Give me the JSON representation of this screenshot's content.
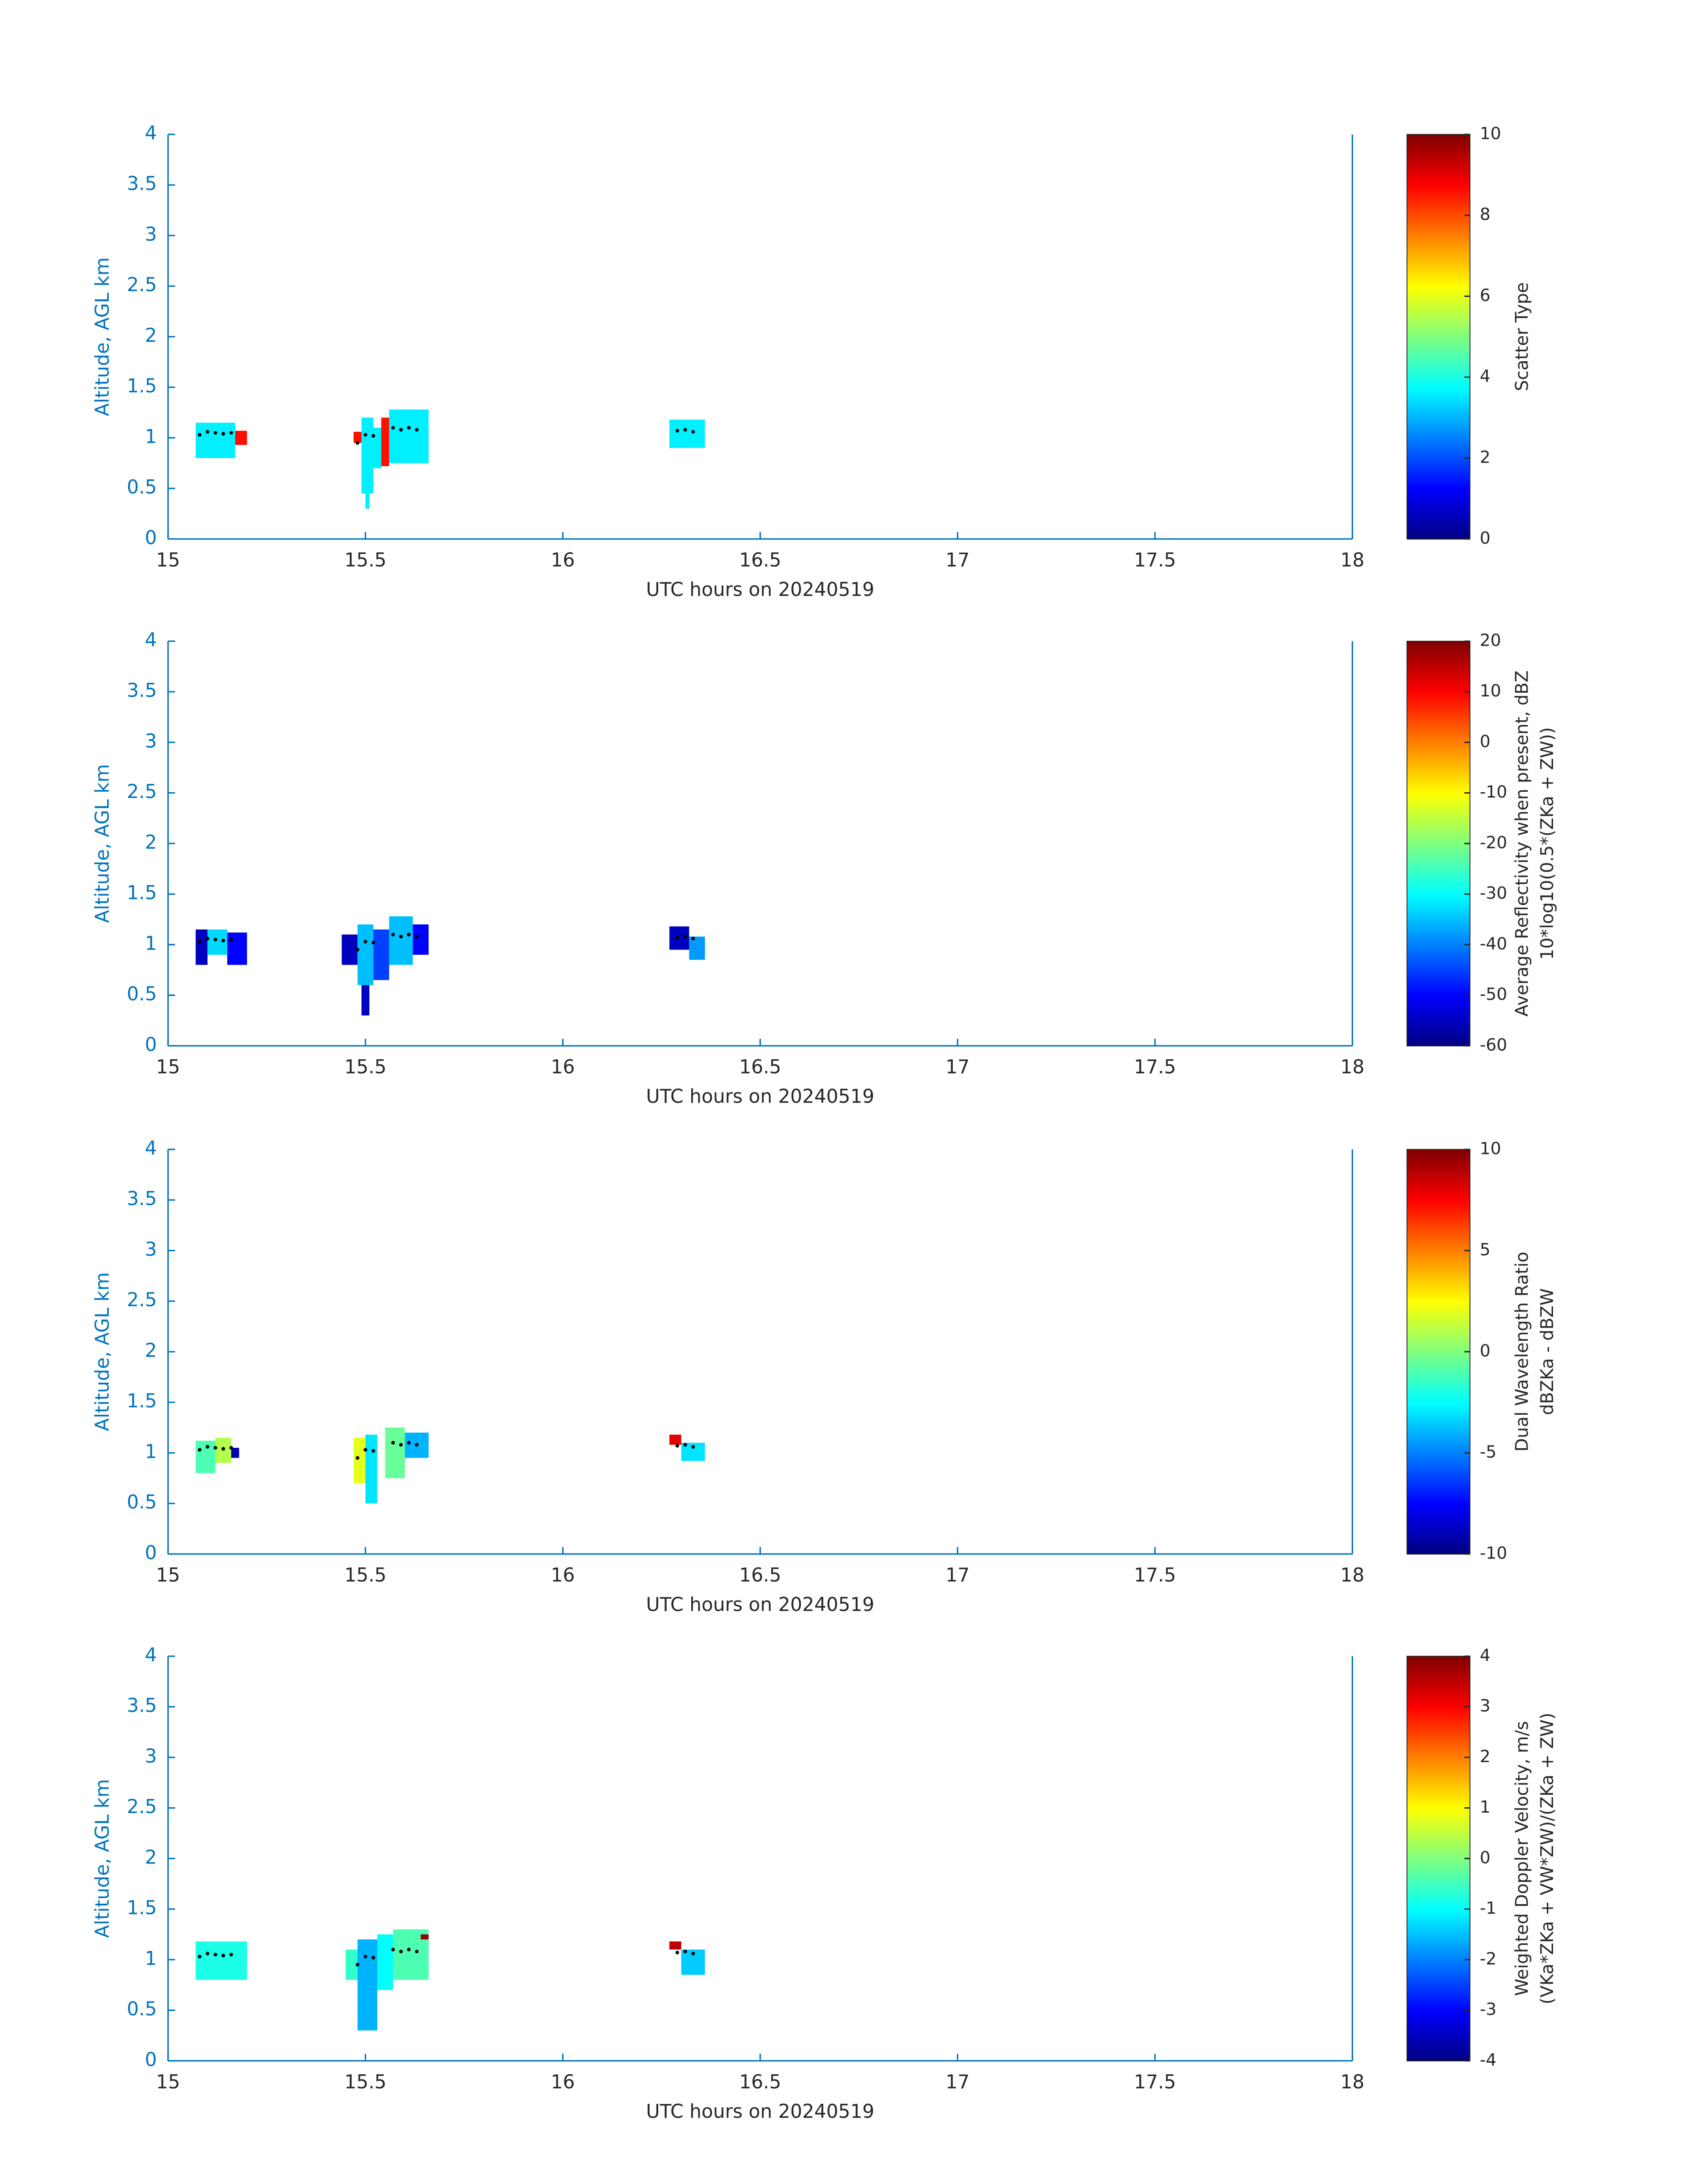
{
  "chart_data": [
    {
      "type": "heatmap",
      "xlabel": "UTC hours on 20240519",
      "ylabel": "Altitude, AGL km",
      "xlim": [
        15,
        18
      ],
      "xticks": [
        15,
        15.5,
        16,
        16.5,
        17,
        17.5,
        18
      ],
      "ylim": [
        0,
        4
      ],
      "yticks": [
        0,
        0.5,
        1,
        1.5,
        2,
        2.5,
        3,
        3.5,
        4
      ],
      "clim": [
        0,
        10
      ],
      "cticks": [
        0,
        2,
        4,
        6,
        8,
        10
      ],
      "clabel": [
        "Scatter Type"
      ],
      "cells": [
        {
          "x": [
            15.07,
            15.17
          ],
          "y": [
            0.8,
            1.15
          ],
          "v": 3.6
        },
        {
          "x": [
            15.17,
            15.2
          ],
          "y": [
            0.93,
            1.07
          ],
          "v": 8.6
        },
        {
          "x": [
            15.47,
            15.49
          ],
          "y": [
            0.95,
            1.06
          ],
          "v": 8.6
        },
        {
          "x": [
            15.49,
            15.52
          ],
          "y": [
            0.45,
            1.2
          ],
          "v": 3.6
        },
        {
          "x": [
            15.5,
            15.51
          ],
          "y": [
            0.3,
            0.45
          ],
          "v": 3.6
        },
        {
          "x": [
            15.52,
            15.54
          ],
          "y": [
            0.7,
            1.1
          ],
          "v": 3.6
        },
        {
          "x": [
            15.54,
            15.56
          ],
          "y": [
            0.72,
            1.2
          ],
          "v": 8.6
        },
        {
          "x": [
            15.56,
            15.66
          ],
          "y": [
            0.75,
            1.28
          ],
          "v": 3.6
        },
        {
          "x": [
            16.27,
            16.36
          ],
          "y": [
            0.9,
            1.18
          ],
          "v": 3.6
        }
      ],
      "dots": {
        "color": "#000000",
        "x": [
          15.08,
          15.1,
          15.12,
          15.14,
          15.16,
          15.48,
          15.5,
          15.52,
          15.57,
          15.59,
          15.61,
          15.63,
          16.29,
          16.31,
          16.33
        ],
        "y": [
          1.03,
          1.06,
          1.05,
          1.04,
          1.05,
          0.95,
          1.03,
          1.02,
          1.1,
          1.08,
          1.1,
          1.08,
          1.07,
          1.08,
          1.06
        ]
      }
    },
    {
      "type": "heatmap",
      "xlabel": "UTC hours on 20240519",
      "ylabel": "Altitude, AGL km",
      "xlim": [
        15,
        18
      ],
      "xticks": [
        15,
        15.5,
        16,
        16.5,
        17,
        17.5,
        18
      ],
      "ylim": [
        0,
        4
      ],
      "yticks": [
        0,
        0.5,
        1,
        1.5,
        2,
        2.5,
        3,
        3.5,
        4
      ],
      "clim": [
        -60,
        20
      ],
      "cticks": [
        -60,
        -50,
        -40,
        -30,
        -20,
        -10,
        0,
        10,
        20
      ],
      "clabel": [
        "Average Reflectivity when present, dBZ",
        "10*log10(0.5*(ZKa + ZW))"
      ],
      "cells": [
        {
          "x": [
            15.07,
            15.1
          ],
          "y": [
            0.8,
            1.15
          ],
          "v": -55
        },
        {
          "x": [
            15.1,
            15.15
          ],
          "y": [
            0.9,
            1.15
          ],
          "v": -33
        },
        {
          "x": [
            15.15,
            15.2
          ],
          "y": [
            0.8,
            1.12
          ],
          "v": -50
        },
        {
          "x": [
            15.44,
            15.48
          ],
          "y": [
            0.8,
            1.1
          ],
          "v": -55
        },
        {
          "x": [
            15.48,
            15.52
          ],
          "y": [
            0.6,
            1.2
          ],
          "v": -35
        },
        {
          "x": [
            15.49,
            15.51
          ],
          "y": [
            0.3,
            0.6
          ],
          "v": -55
        },
        {
          "x": [
            15.52,
            15.56
          ],
          "y": [
            0.65,
            1.15
          ],
          "v": -45
        },
        {
          "x": [
            15.56,
            15.62
          ],
          "y": [
            0.8,
            1.28
          ],
          "v": -35
        },
        {
          "x": [
            15.62,
            15.66
          ],
          "y": [
            0.9,
            1.2
          ],
          "v": -50
        },
        {
          "x": [
            16.27,
            16.32
          ],
          "y": [
            0.95,
            1.18
          ],
          "v": -55
        },
        {
          "x": [
            16.32,
            16.36
          ],
          "y": [
            0.85,
            1.08
          ],
          "v": -38
        }
      ],
      "dots": {
        "color": "#000000",
        "x": [
          15.08,
          15.1,
          15.12,
          15.14,
          15.16,
          15.48,
          15.5,
          15.52,
          15.57,
          15.59,
          15.61,
          15.63,
          16.29,
          16.31,
          16.33
        ],
        "y": [
          1.03,
          1.06,
          1.05,
          1.04,
          1.05,
          0.95,
          1.03,
          1.02,
          1.1,
          1.08,
          1.1,
          1.08,
          1.07,
          1.08,
          1.06
        ]
      }
    },
    {
      "type": "heatmap",
      "xlabel": "UTC hours on 20240519",
      "ylabel": "Altitude, AGL km",
      "xlim": [
        15,
        18
      ],
      "xticks": [
        15,
        15.5,
        16,
        16.5,
        17,
        17.5,
        18
      ],
      "ylim": [
        0,
        4
      ],
      "yticks": [
        0,
        0.5,
        1,
        1.5,
        2,
        2.5,
        3,
        3.5,
        4
      ],
      "clim": [
        -10,
        10
      ],
      "cticks": [
        -10,
        -5,
        0,
        5,
        10
      ],
      "clabel": [
        "Dual Wavelength Ratio",
        "dBZKa - dBZW"
      ],
      "cells": [
        {
          "x": [
            15.07,
            15.12
          ],
          "y": [
            0.8,
            1.12
          ],
          "v": -1
        },
        {
          "x": [
            15.12,
            15.16
          ],
          "y": [
            0.9,
            1.15
          ],
          "v": 1
        },
        {
          "x": [
            15.16,
            15.18
          ],
          "y": [
            0.95,
            1.05
          ],
          "v": -9
        },
        {
          "x": [
            15.47,
            15.5
          ],
          "y": [
            0.7,
            1.15
          ],
          "v": 2
        },
        {
          "x": [
            15.5,
            15.53
          ],
          "y": [
            0.5,
            1.18
          ],
          "v": -3
        },
        {
          "x": [
            15.55,
            15.6
          ],
          "y": [
            0.75,
            1.25
          ],
          "v": -0.5
        },
        {
          "x": [
            15.6,
            15.66
          ],
          "y": [
            0.95,
            1.2
          ],
          "v": -4
        },
        {
          "x": [
            16.27,
            16.3
          ],
          "y": [
            1.08,
            1.18
          ],
          "v": 8
        },
        {
          "x": [
            16.3,
            16.36
          ],
          "y": [
            0.92,
            1.1
          ],
          "v": -3
        }
      ],
      "dots": {
        "color": "#000000",
        "x": [
          15.08,
          15.1,
          15.12,
          15.14,
          15.16,
          15.48,
          15.5,
          15.52,
          15.57,
          15.59,
          15.61,
          15.63,
          16.29,
          16.31,
          16.33
        ],
        "y": [
          1.03,
          1.06,
          1.05,
          1.04,
          1.05,
          0.95,
          1.03,
          1.02,
          1.1,
          1.08,
          1.1,
          1.08,
          1.07,
          1.08,
          1.06
        ]
      }
    },
    {
      "type": "heatmap",
      "xlabel": "UTC hours on 20240519",
      "ylabel": "Altitude, AGL km",
      "xlim": [
        15,
        18
      ],
      "xticks": [
        15,
        15.5,
        16,
        16.5,
        17,
        17.5,
        18
      ],
      "ylim": [
        0,
        4
      ],
      "yticks": [
        0,
        0.5,
        1,
        1.5,
        2,
        2.5,
        3,
        3.5,
        4
      ],
      "clim": [
        -4,
        4
      ],
      "cticks": [
        -4,
        -3,
        -2,
        -1,
        0,
        1,
        2,
        3,
        4
      ],
      "clabel": [
        "Weighted Doppler Velocity, m/s",
        "(VKa*ZKa + VW*ZW)/(ZKa + ZW)"
      ],
      "cells": [
        {
          "x": [
            15.07,
            15.2
          ],
          "y": [
            0.8,
            1.18
          ],
          "v": -0.8
        },
        {
          "x": [
            15.45,
            15.48
          ],
          "y": [
            0.8,
            1.1
          ],
          "v": -0.6
        },
        {
          "x": [
            15.48,
            15.53
          ],
          "y": [
            0.3,
            1.2
          ],
          "v": -1.6
        },
        {
          "x": [
            15.53,
            15.57
          ],
          "y": [
            0.7,
            1.25
          ],
          "v": -1
        },
        {
          "x": [
            15.57,
            15.66
          ],
          "y": [
            0.8,
            1.3
          ],
          "v": -0.4
        },
        {
          "x": [
            15.64,
            15.66
          ],
          "y": [
            1.2,
            1.25
          ],
          "v": 3.8
        },
        {
          "x": [
            16.27,
            16.3
          ],
          "y": [
            1.1,
            1.18
          ],
          "v": 3.5
        },
        {
          "x": [
            16.3,
            16.36
          ],
          "y": [
            0.85,
            1.1
          ],
          "v": -1.4
        }
      ],
      "dots": {
        "color": "#000000",
        "x": [
          15.08,
          15.1,
          15.12,
          15.14,
          15.16,
          15.48,
          15.5,
          15.52,
          15.57,
          15.59,
          15.61,
          15.63,
          16.29,
          16.31,
          16.33
        ],
        "y": [
          1.03,
          1.06,
          1.05,
          1.04,
          1.05,
          0.95,
          1.03,
          1.02,
          1.1,
          1.08,
          1.1,
          1.08,
          1.07,
          1.08,
          1.06
        ]
      }
    }
  ]
}
